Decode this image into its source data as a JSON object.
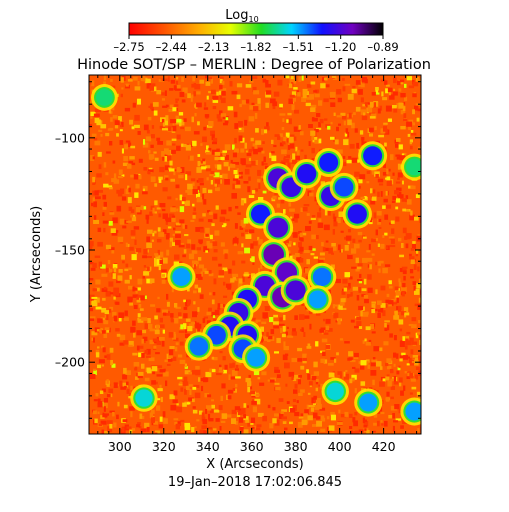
{
  "chart_data": {
    "type": "heatmap",
    "title": "Hinode SOT/SP – MERLIN : Degree of Polarization",
    "colorbar": {
      "label_main": "Log",
      "label_sub": "10",
      "ticks": [
        "–2.75",
        "–2.44",
        "–2.13",
        "–1.82",
        "–1.51",
        "–1.20",
        "–0.89"
      ],
      "range": [
        -2.75,
        -0.89
      ],
      "colormap": "rainbow (red → orange → yellow → green → cyan → blue → violet → black)"
    },
    "xlabel": "X (Arcseconds)",
    "ylabel": "Y (Arcseconds)",
    "xlim": [
      286,
      437
    ],
    "ylim": [
      -232,
      -72
    ],
    "xticks": [
      {
        "value": 300,
        "label": "300"
      },
      {
        "value": 320,
        "label": "320"
      },
      {
        "value": 340,
        "label": "340"
      },
      {
        "value": 360,
        "label": "360"
      },
      {
        "value": 380,
        "label": "380"
      },
      {
        "value": 400,
        "label": "400"
      },
      {
        "value": 420,
        "label": "420"
      }
    ],
    "yticks": [
      {
        "value": -100,
        "label": "–100"
      },
      {
        "value": -150,
        "label": "–150"
      },
      {
        "value": -200,
        "label": "–200"
      }
    ],
    "timestamp": "19–Jan–2018 17:02:06.845",
    "features": [
      {
        "x": 372,
        "y": -118,
        "value": -1.2
      },
      {
        "x": 378,
        "y": -122,
        "value": -1.25
      },
      {
        "x": 385,
        "y": -116,
        "value": -1.3
      },
      {
        "x": 395,
        "y": -111,
        "value": -1.35
      },
      {
        "x": 396,
        "y": -126,
        "value": -1.25
      },
      {
        "x": 402,
        "y": -122,
        "value": -1.4
      },
      {
        "x": 408,
        "y": -134,
        "value": -1.3
      },
      {
        "x": 415,
        "y": -108,
        "value": -1.35
      },
      {
        "x": 364,
        "y": -134,
        "value": -1.35
      },
      {
        "x": 372,
        "y": -140,
        "value": -1.2
      },
      {
        "x": 370,
        "y": -152,
        "value": -1.1
      },
      {
        "x": 376,
        "y": -160,
        "value": -1.15
      },
      {
        "x": 366,
        "y": -166,
        "value": -1.2
      },
      {
        "x": 374,
        "y": -171,
        "value": -1.1
      },
      {
        "x": 380,
        "y": -168,
        "value": -1.2
      },
      {
        "x": 358,
        "y": -172,
        "value": -1.3
      },
      {
        "x": 354,
        "y": -178,
        "value": -1.25
      },
      {
        "x": 350,
        "y": -184,
        "value": -1.3
      },
      {
        "x": 358,
        "y": -188,
        "value": -1.3
      },
      {
        "x": 344,
        "y": -188,
        "value": -1.4
      },
      {
        "x": 336,
        "y": -193,
        "value": -1.45
      },
      {
        "x": 356,
        "y": -194,
        "value": -1.4
      },
      {
        "x": 328,
        "y": -162,
        "value": -1.5
      },
      {
        "x": 362,
        "y": -198,
        "value": -1.5
      },
      {
        "x": 392,
        "y": -162,
        "value": -1.45
      },
      {
        "x": 390,
        "y": -172,
        "value": -1.5
      },
      {
        "x": 311,
        "y": -216,
        "value": -1.6
      },
      {
        "x": 398,
        "y": -213,
        "value": -1.6
      },
      {
        "x": 413,
        "y": -218,
        "value": -1.5
      },
      {
        "x": 434,
        "y": -222,
        "value": -1.5
      },
      {
        "x": 434,
        "y": -113,
        "value": -1.7
      },
      {
        "x": 293,
        "y": -82,
        "value": -1.7
      }
    ]
  }
}
